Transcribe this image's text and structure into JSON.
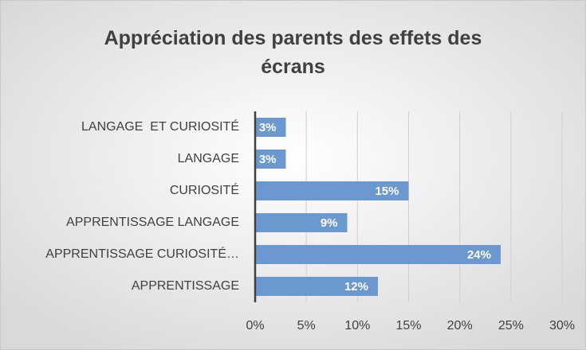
{
  "chart_data": {
    "type": "bar",
    "orientation": "horizontal",
    "title": "Appréciation des parents des effets des écrans",
    "categories": [
      "LANGAGE  ET CURIOSITÉ",
      "LANGAGE",
      "CURIOSITÉ",
      "APPRENTISSAGE LANGAGE",
      "APPRENTISSAGE CURIOSITÉ…",
      "APPRENTISSAGE"
    ],
    "values": [
      3,
      3,
      15,
      9,
      24,
      12
    ],
    "value_labels": [
      "3%",
      "3%",
      "15%",
      "9%",
      "24%",
      "12%"
    ],
    "color": "#6a98cf",
    "xlim": [
      0,
      30
    ],
    "xticks": [
      {
        "value": 0,
        "label": "0%"
      },
      {
        "value": 5,
        "label": "5%"
      },
      {
        "value": 10,
        "label": "10%"
      },
      {
        "value": 15,
        "label": "15%"
      },
      {
        "value": 20,
        "label": "20%"
      },
      {
        "value": 25,
        "label": "25%"
      },
      {
        "value": 30,
        "label": "30%"
      }
    ],
    "grid": true
  }
}
